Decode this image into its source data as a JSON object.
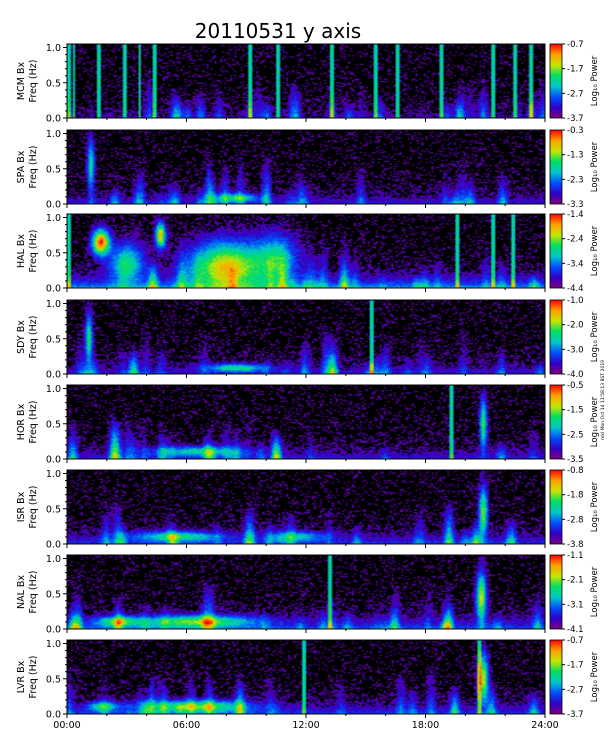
{
  "title": "20110531  y axis",
  "stamp": "mkl  Mon Oct 14 11:58:13 BST 2019",
  "chart_data": {
    "type": "heatmap",
    "title": "20110531  y axis",
    "x_ticks": [
      "00:00",
      "06:00",
      "12:00",
      "18:00",
      "24:00"
    ],
    "x_range_hours": [
      0,
      24
    ],
    "y_range_hz": [
      0,
      1.05
    ],
    "y_ticks": [
      "0.0",
      "0.5",
      "1.0"
    ],
    "y_unit_label": "Freq (Hz)",
    "colorbar_label": "Log₁₀ Power",
    "colormap": [
      "#800080",
      "#3000c8",
      "#0050ff",
      "#00c8c8",
      "#00e060",
      "#c8e600",
      "#ffa000",
      "#ff0000"
    ],
    "background": "#000000",
    "panels": [
      {
        "station": "MCM Bx",
        "cb_ticks": [
          "-0.7",
          "-1.7",
          "-2.7",
          "-3.7"
        ],
        "cb_min": -3.7,
        "cb_max": -0.7,
        "base_level": 0.08,
        "lines": [
          0.1,
          0.35,
          1.6,
          2.9,
          3.65,
          4.4,
          9.2,
          10.6,
          13.3,
          15.5,
          16.6,
          18.8,
          21.4,
          22.5,
          23.3
        ],
        "blobs": []
      },
      {
        "station": "SPA Bx",
        "cb_ticks": [
          "-0.3",
          "-1.3",
          "-2.3",
          "-3.3"
        ],
        "cb_min": -3.3,
        "cb_max": -0.3,
        "base_level": 0.15,
        "lines": [],
        "blobs": [
          {
            "t": 1.2,
            "f": 0.55,
            "w": 0.25,
            "h": 0.5,
            "v": 0.5
          },
          {
            "t": 8.5,
            "f": 0.08,
            "w": 1.5,
            "h": 0.08,
            "v": 0.45
          }
        ]
      },
      {
        "station": "HAL Bx",
        "cb_ticks": [
          "-1.4",
          "-2.4",
          "-3.4",
          "-4.4"
        ],
        "cb_min": -4.4,
        "cb_max": -1.4,
        "base_level": 0.35,
        "lines": [
          0.1,
          19.6,
          21.4,
          22.4
        ],
        "blobs": [
          {
            "t": 1.7,
            "f": 0.65,
            "w": 0.6,
            "h": 0.25,
            "v": 0.95
          },
          {
            "t": 4.7,
            "f": 0.75,
            "w": 0.35,
            "h": 0.25,
            "v": 0.8
          },
          {
            "t": 8.0,
            "f": 0.3,
            "w": 2.5,
            "h": 0.5,
            "v": 0.75
          },
          {
            "t": 3.0,
            "f": 0.35,
            "w": 1.2,
            "h": 0.4,
            "v": 0.5
          },
          {
            "t": 10.5,
            "f": 0.4,
            "w": 1.5,
            "h": 0.5,
            "v": 0.45
          }
        ]
      },
      {
        "station": "SDY Bx",
        "cb_ticks": [
          "-1.0",
          "-2.0",
          "-3.0",
          "-4.0"
        ],
        "cb_min": -4.0,
        "cb_max": -1.0,
        "base_level": 0.15,
        "lines": [
          15.3
        ],
        "blobs": [
          {
            "t": 1.1,
            "f": 0.5,
            "w": 0.25,
            "h": 0.5,
            "v": 0.55
          },
          {
            "t": 8.5,
            "f": 0.08,
            "w": 2.0,
            "h": 0.08,
            "v": 0.45
          }
        ]
      },
      {
        "station": "HOR Bx",
        "cb_ticks": [
          "-0.5",
          "-1.5",
          "-2.5",
          "-3.5"
        ],
        "cb_min": -3.5,
        "cb_max": -0.5,
        "base_level": 0.15,
        "lines": [
          19.3
        ],
        "blobs": [
          {
            "t": 20.9,
            "f": 0.5,
            "w": 0.25,
            "h": 0.5,
            "v": 0.6
          },
          {
            "t": 6.5,
            "f": 0.1,
            "w": 3.0,
            "h": 0.1,
            "v": 0.4
          }
        ]
      },
      {
        "station": "ISR Bx",
        "cb_ticks": [
          "-0.8",
          "-1.8",
          "-2.8",
          "-3.8"
        ],
        "cb_min": -3.8,
        "cb_max": -0.8,
        "base_level": 0.2,
        "lines": [],
        "blobs": [
          {
            "t": 20.9,
            "f": 0.45,
            "w": 0.3,
            "h": 0.5,
            "v": 0.65
          },
          {
            "t": 5.5,
            "f": 0.1,
            "w": 3.0,
            "h": 0.1,
            "v": 0.45
          },
          {
            "t": 11.5,
            "f": 0.1,
            "w": 2.0,
            "h": 0.1,
            "v": 0.35
          }
        ]
      },
      {
        "station": "NAL Bx",
        "cb_ticks": [
          "-1.1",
          "-2.1",
          "-3.1",
          "-4.1"
        ],
        "cb_min": -4.1,
        "cb_max": -1.1,
        "base_level": 0.25,
        "lines": [
          13.2
        ],
        "blobs": [
          {
            "t": 20.8,
            "f": 0.45,
            "w": 0.35,
            "h": 0.5,
            "v": 0.7
          },
          {
            "t": 6.5,
            "f": 0.1,
            "w": 4.0,
            "h": 0.12,
            "v": 0.55
          },
          {
            "t": 2.5,
            "f": 0.1,
            "w": 1.5,
            "h": 0.1,
            "v": 0.45
          }
        ]
      },
      {
        "station": "LVR Bx",
        "cb_ticks": [
          "-0.7",
          "-1.7",
          "-2.7",
          "-3.7"
        ],
        "cb_min": -3.7,
        "cb_max": -0.7,
        "base_level": 0.2,
        "lines": [
          11.9,
          20.7
        ],
        "blobs": [
          {
            "t": 20.9,
            "f": 0.5,
            "w": 0.35,
            "h": 0.5,
            "v": 0.7
          },
          {
            "t": 6.5,
            "f": 0.1,
            "w": 3.5,
            "h": 0.12,
            "v": 0.55
          },
          {
            "t": 1.8,
            "f": 0.1,
            "w": 1.0,
            "h": 0.1,
            "v": 0.45
          }
        ]
      }
    ]
  }
}
